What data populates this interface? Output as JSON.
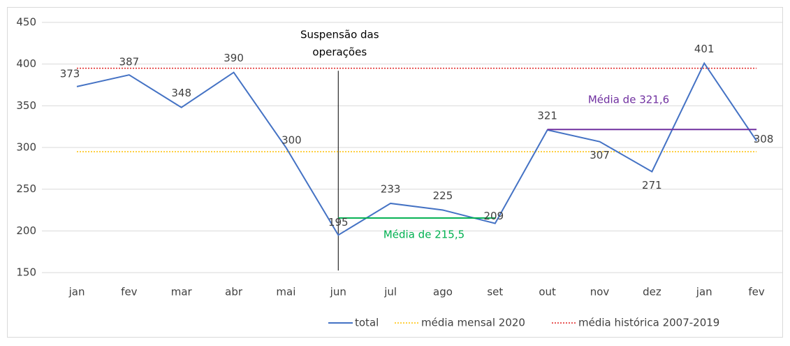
{
  "chart_data": {
    "type": "line",
    "categories": [
      "jan",
      "fev",
      "mar",
      "abr",
      "mai",
      "jun",
      "jul",
      "ago",
      "set",
      "out",
      "nov",
      "dez",
      "jan",
      "fev"
    ],
    "series": [
      {
        "name": "total",
        "color": "#4472c4",
        "style": "solid",
        "values": [
          373,
          387,
          348,
          390,
          300,
          195,
          233,
          225,
          209,
          321,
          307,
          271,
          401,
          308
        ]
      },
      {
        "name": "média mensal 2020",
        "color": "#ffc000",
        "style": "dotted",
        "values": [
          295,
          295,
          295,
          295,
          295,
          295,
          295,
          295,
          295,
          295,
          295,
          295,
          295,
          295
        ]
      },
      {
        "name": "média histórica 2007-2019",
        "color": "#e02020",
        "style": "dotted",
        "values": [
          395,
          395,
          395,
          395,
          395,
          395,
          395,
          395,
          395,
          395,
          395,
          395,
          395,
          395
        ]
      }
    ],
    "ylim": [
      150,
      450
    ],
    "yticks": [
      150,
      200,
      250,
      300,
      350,
      400,
      450
    ],
    "grid": true,
    "legend": "bottom",
    "event": {
      "text": [
        "Suspensão das",
        "operações"
      ],
      "at": 5,
      "color": "#000000"
    },
    "averages": [
      {
        "text": "Média de 215,5",
        "value": 215.5,
        "from": 5,
        "to": 8,
        "color": "#00b050"
      },
      {
        "text": "Média de 321,6",
        "value": 321.6,
        "from": 9,
        "to": 13,
        "color": "#7030a0"
      }
    ]
  }
}
